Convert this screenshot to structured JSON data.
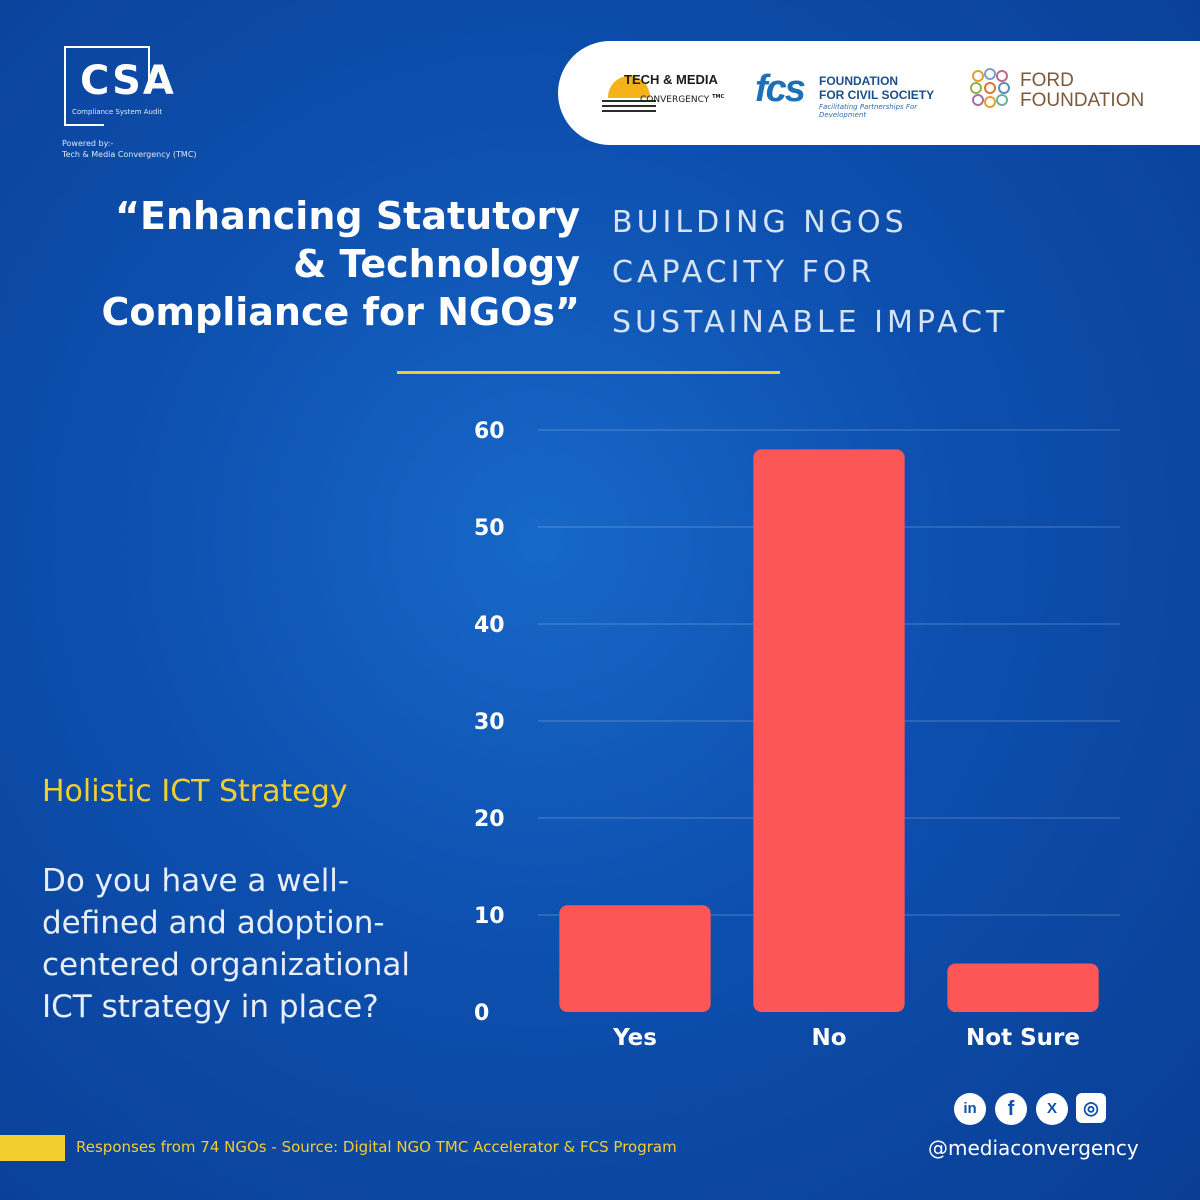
{
  "brand": {
    "logo_text": "CSA",
    "logo_subtitle": "Compliance System Audit",
    "powered_by_line1": "Powered by:-",
    "powered_by_line2": "Tech & Media Convergency (TMC)"
  },
  "partners": {
    "tmc_line1": "TECH & MEDIA",
    "tmc_line2": "CONVERGENCY",
    "tmc_mark": "TMC",
    "fcs_mark": "fcs",
    "fcs_line1": "FOUNDATION",
    "fcs_line2": "FOR CIVIL SOCIETY",
    "fcs_tagline": "Facilitating Partnerships For Development",
    "ford_line1": "FORD",
    "ford_line2": "FOUNDATION"
  },
  "headline": {
    "line1": "“Enhancing Statutory",
    "line2": "& Technology",
    "line3": "Compliance for NGOs”"
  },
  "tagline": {
    "line1": "BUILDING NGOS",
    "line2": "CAPACITY FOR",
    "line3": "SUSTAINABLE IMPACT"
  },
  "section": {
    "title": "Holistic ICT Strategy",
    "question": "Do you have a well-defined and adoption-centered organizational ICT strategy in place?"
  },
  "chart_data": {
    "type": "bar",
    "title": "",
    "xlabel": "",
    "ylabel": "",
    "categories": [
      "Yes",
      "No",
      "Not Sure"
    ],
    "values": [
      11,
      58,
      5
    ],
    "ylim": [
      0,
      60
    ],
    "yticks": [
      0,
      10,
      20,
      30,
      40,
      50,
      60
    ],
    "grid": true,
    "bar_color": "#fd5656"
  },
  "footer": {
    "source": "Responses from 74 NGOs - Source: Digital NGO TMC Accelerator & FCS Program",
    "handle": "@mediaconvergency",
    "social": {
      "linkedin": "in",
      "facebook": "f",
      "x": "X",
      "instagram": "◎"
    }
  },
  "colors": {
    "accent_yellow": "#f2cd2e",
    "background_blue": "#0d4fae"
  }
}
